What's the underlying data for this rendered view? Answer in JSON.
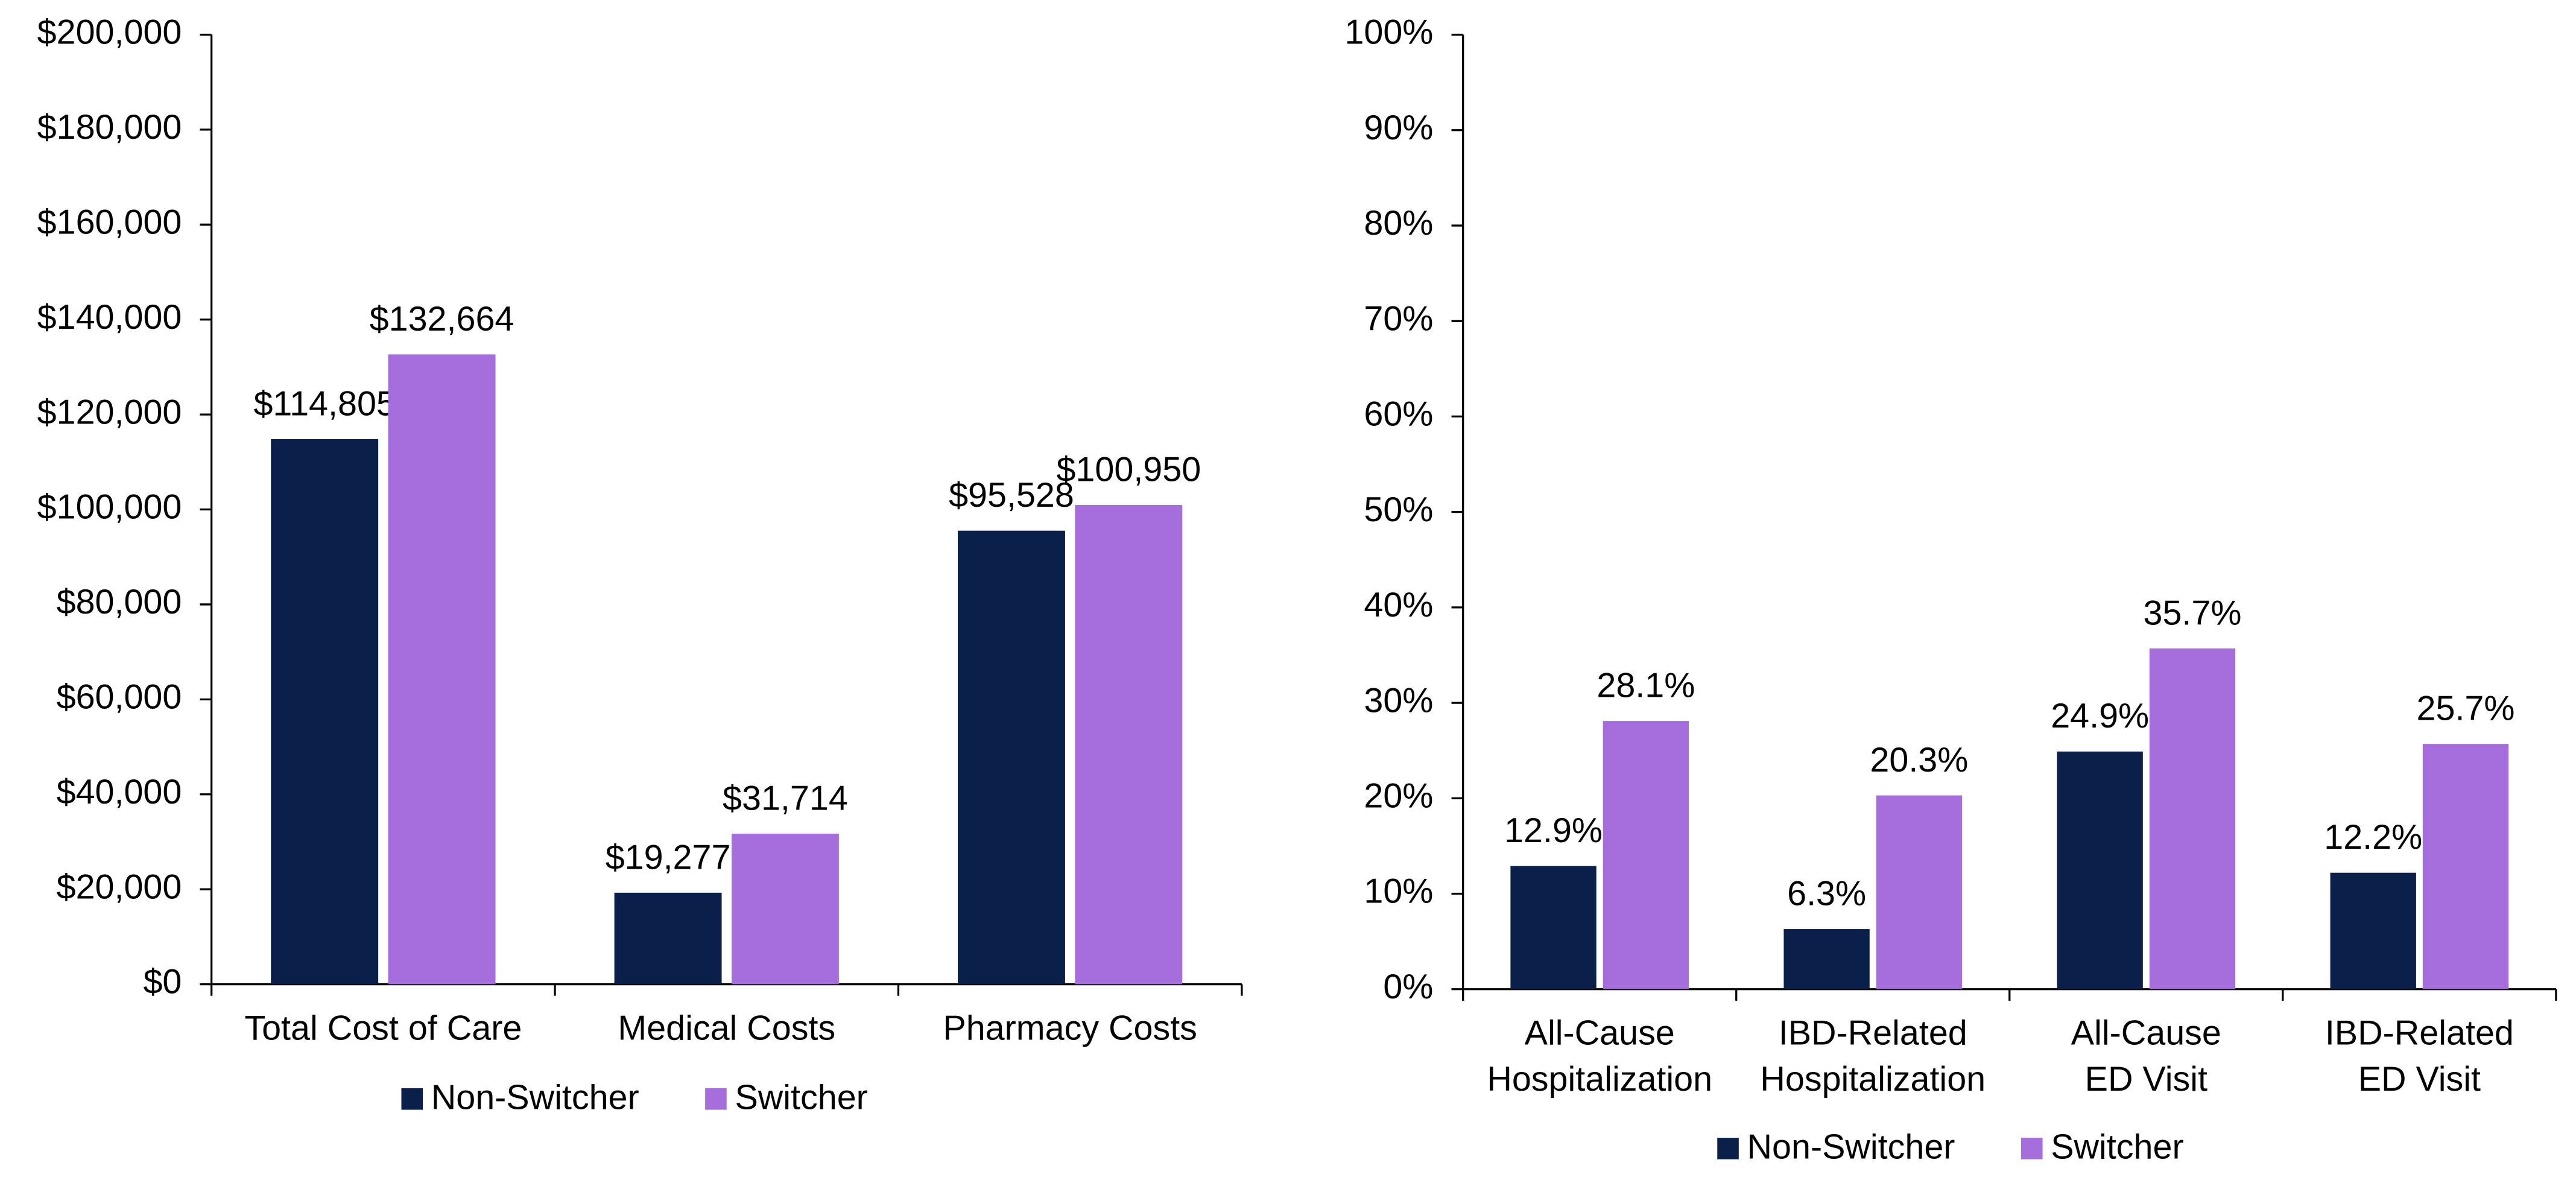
{
  "chart_data": [
    {
      "type": "bar",
      "categories": [
        "Total Cost of Care",
        "Medical Costs",
        "Pharmacy Costs"
      ],
      "series": [
        {
          "name": "Non-Switcher",
          "color": "#0b1f4b",
          "values": [
            114805,
            19277,
            95528
          ],
          "value_labels": [
            "$114,805",
            "$19,277",
            "$95,528"
          ]
        },
        {
          "name": "Switcher",
          "color": "#a66ddd",
          "values": [
            132664,
            31714,
            100950
          ],
          "value_labels": [
            "$132,664",
            "$31,714",
            "$100,950"
          ]
        }
      ],
      "ylim": [
        0,
        200000
      ],
      "yticks": [
        {
          "value": 0,
          "label": "$0"
        },
        {
          "value": 20000,
          "label": "$20,000"
        },
        {
          "value": 40000,
          "label": "$40,000"
        },
        {
          "value": 60000,
          "label": "$60,000"
        },
        {
          "value": 80000,
          "label": "$80,000"
        },
        {
          "value": 100000,
          "label": "$100,000"
        },
        {
          "value": 120000,
          "label": "$120,000"
        },
        {
          "value": 140000,
          "label": "$140,000"
        },
        {
          "value": 160000,
          "label": "$160,000"
        },
        {
          "value": 180000,
          "label": "$180,000"
        },
        {
          "value": 200000,
          "label": "$200,000"
        }
      ],
      "grid": false,
      "legend": "bottom"
    },
    {
      "type": "bar",
      "categories": [
        "All-Cause\nHospitalization",
        "IBD-Related\nHospitalization",
        "All-Cause\nED Visit",
        "IBD-Related\nED Visit"
      ],
      "series": [
        {
          "name": "Non-Switcher",
          "color": "#0b1f4b",
          "values": [
            12.9,
            6.3,
            24.9,
            12.2
          ],
          "value_labels": [
            "12.9%",
            "6.3%",
            "24.9%",
            "12.2%"
          ]
        },
        {
          "name": "Switcher",
          "color": "#a66ddd",
          "values": [
            28.1,
            20.3,
            35.7,
            25.7
          ],
          "value_labels": [
            "28.1%",
            "20.3%",
            "35.7%",
            "25.7%"
          ]
        }
      ],
      "ylim": [
        0,
        100
      ],
      "yticks": [
        {
          "value": 0,
          "label": "0%"
        },
        {
          "value": 10,
          "label": "10%"
        },
        {
          "value": 20,
          "label": "20%"
        },
        {
          "value": 30,
          "label": "30%"
        },
        {
          "value": 40,
          "label": "40%"
        },
        {
          "value": 50,
          "label": "50%"
        },
        {
          "value": 60,
          "label": "60%"
        },
        {
          "value": 70,
          "label": "70%"
        },
        {
          "value": 80,
          "label": "80%"
        },
        {
          "value": 90,
          "label": "90%"
        },
        {
          "value": 100,
          "label": "100%"
        }
      ],
      "grid": false,
      "legend": "bottom"
    }
  ]
}
